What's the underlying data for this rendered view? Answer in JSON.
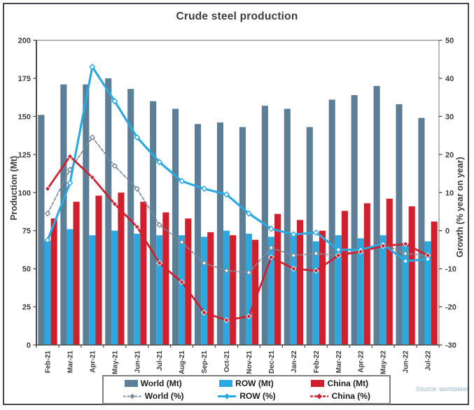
{
  "colors": {
    "world": "#5c7e97",
    "row": "#29a9e1",
    "china": "#cf2030",
    "world_line": "#7b8b97",
    "row_line": "#29a9e1",
    "china_line": "#cf2030"
  },
  "chart_data": {
    "type": "combo grouped bar + line, dual y-axis",
    "title": "Crude steel production",
    "source": "Source: worldsteel",
    "grid": false,
    "legend_position": "bottom",
    "categories": [
      "Feb-21",
      "Mar-21",
      "Apr-21",
      "May-21",
      "Jun-21",
      "Jul-21",
      "Aug-21",
      "Sep-21",
      "Oct-21",
      "Nov-21",
      "Dec-21",
      "Jan-22",
      "Feb-22",
      "Mar-22",
      "Apr-22",
      "May-22",
      "Jun-22",
      "Jul-22"
    ],
    "left_axis": {
      "title": "Production (Mt)",
      "min": 0,
      "max": 200,
      "tick_step": 25,
      "ticks": [
        0,
        25,
        50,
        75,
        100,
        125,
        150,
        175,
        200
      ]
    },
    "right_axis": {
      "title": "Growth (% year on year)",
      "min": -30,
      "max": 50,
      "tick_step": 10,
      "ticks": [
        -30,
        -20,
        -10,
        0,
        10,
        20,
        30,
        40,
        50
      ]
    },
    "series": [
      {
        "name": "World (Mt)",
        "type": "bar",
        "axis": "left",
        "color_key": "world",
        "values": [
          151,
          171,
          171,
          175,
          168,
          160,
          155,
          145,
          146,
          143,
          157,
          155,
          143,
          161,
          164,
          170,
          158,
          149
        ]
      },
      {
        "name": "ROW (Mt)",
        "type": "bar",
        "axis": "left",
        "color_key": "row",
        "values": [
          68,
          76,
          72,
          75,
          73,
          72,
          72,
          71,
          75,
          73,
          71,
          72,
          68,
          72,
          70,
          72,
          67,
          68
        ]
      },
      {
        "name": "China (Mt)",
        "type": "bar",
        "axis": "left",
        "color_key": "china",
        "values": [
          83,
          94,
          98,
          100,
          94,
          87,
          83,
          74,
          72,
          69,
          86,
          82,
          75,
          88,
          93,
          96,
          91,
          81
        ]
      },
      {
        "name": "World (%)",
        "type": "line",
        "axis": "right",
        "color_key": "world_line",
        "dashed": true,
        "marker": "open",
        "values": [
          4.5,
          16,
          24.5,
          17,
          11,
          1.5,
          -3,
          -8.5,
          -10.5,
          -11,
          -4.5,
          -6.5,
          -6,
          -6.5,
          -5,
          -3.5,
          -6,
          -6.5
        ]
      },
      {
        "name": "ROW (%)",
        "type": "line",
        "axis": "right",
        "color_key": "row_line",
        "dashed": false,
        "marker": "open",
        "values": [
          -2.5,
          12.5,
          43,
          34,
          24.5,
          18,
          13,
          11,
          9.5,
          4.5,
          0.5,
          -1,
          -0.5,
          -5,
          -5,
          -3.5,
          -8,
          -7.5
        ]
      },
      {
        "name": "China (%)",
        "type": "line",
        "axis": "right",
        "color_key": "china_line",
        "dashed": false,
        "marker": "filled",
        "values": [
          11,
          19.5,
          14,
          7,
          1,
          -8.5,
          -13.5,
          -21.5,
          -23.5,
          -22.5,
          -7,
          -10,
          -10.5,
          -6.5,
          -5.5,
          -4,
          -3.5,
          -6.5
        ]
      }
    ]
  }
}
